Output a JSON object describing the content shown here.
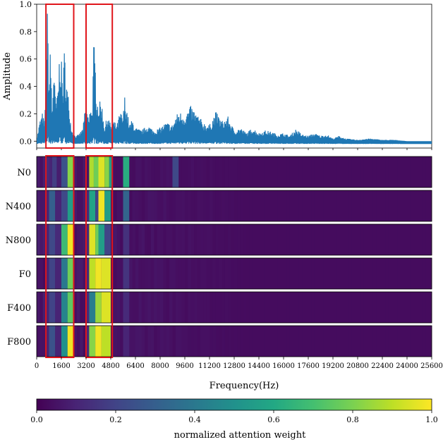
{
  "chart_data": [
    {
      "type": "line",
      "ylabel": "Amplitude",
      "xlim": [
        0,
        25600
      ],
      "ylim": [
        -0.05,
        1.0
      ],
      "yticks": [
        0.0,
        0.2,
        0.4,
        0.6,
        0.8,
        1.0
      ],
      "ytick_labels": [
        "0.0",
        "0.2",
        "0.4",
        "0.6",
        "0.8",
        "1.0"
      ],
      "line_color": "#1f77b4",
      "series": [
        {
          "x": [
            0,
            200,
            400,
            500,
            600,
            700,
            800,
            900,
            1000,
            1100,
            1200,
            1300,
            1400,
            1500,
            1600,
            1700,
            1800,
            1900,
            2000,
            2100,
            2200,
            2300,
            2400,
            2600,
            2800,
            3000,
            3200,
            3400,
            3500,
            3600,
            3700,
            3800,
            3900,
            4000,
            4200,
            4400,
            4600,
            4800,
            5000,
            5200,
            5400,
            5600,
            5700,
            5800,
            6000,
            6200,
            6400,
            6800,
            7200,
            7600,
            8000,
            8400,
            8800,
            9000,
            9200,
            9600,
            10000,
            10400,
            10800,
            11200,
            11600,
            12000,
            12400,
            12800,
            13200,
            13600,
            14000,
            14400,
            14800,
            15200,
            15600,
            16000,
            16400,
            16800,
            17200,
            17600,
            18000,
            18400,
            18800,
            19200,
            19600,
            20000,
            20800,
            21600,
            22400,
            23200,
            24000,
            24800,
            25600
          ],
          "y": [
            0.01,
            0.15,
            0.22,
            0.1,
            0.55,
            0.98,
            0.45,
            0.72,
            0.2,
            0.6,
            0.35,
            0.3,
            0.45,
            0.72,
            0.6,
            0.4,
            0.7,
            0.5,
            0.38,
            0.3,
            0.15,
            0.08,
            0.05,
            0.04,
            0.06,
            0.1,
            0.3,
            0.15,
            0.34,
            0.2,
            0.75,
            0.58,
            0.33,
            0.28,
            0.3,
            0.1,
            0.2,
            0.12,
            0.15,
            0.12,
            0.22,
            0.18,
            0.34,
            0.28,
            0.12,
            0.16,
            0.1,
            0.08,
            0.12,
            0.08,
            0.1,
            0.14,
            0.12,
            0.18,
            0.22,
            0.2,
            0.26,
            0.2,
            0.14,
            0.12,
            0.22,
            0.15,
            0.18,
            0.08,
            0.1,
            0.06,
            0.1,
            0.06,
            0.08,
            0.07,
            0.05,
            0.06,
            0.04,
            0.09,
            0.05,
            0.04,
            0.06,
            0.04,
            0.05,
            0.02,
            0.04,
            0.02,
            0.01,
            0.02,
            0.01,
            0.01,
            0.0,
            0.0,
            0.0
          ]
        }
      ],
      "highlight_boxes": [
        {
          "x": [
            600,
            2400
          ],
          "y": [
            -0.05,
            1.0
          ],
          "color": "#e0151b"
        },
        {
          "x": [
            3200,
            4900
          ],
          "y": [
            -0.05,
            1.0
          ],
          "color": "#e0151b"
        }
      ]
    },
    {
      "type": "heatmap",
      "rows": [
        "N0",
        "N400",
        "N800",
        "F0",
        "F400",
        "F800"
      ],
      "xlim": [
        0,
        25600
      ],
      "xlabel": "Frequency(Hz)",
      "xticks": [
        0,
        1600,
        3200,
        4800,
        6400,
        8000,
        9600,
        11200,
        12800,
        14400,
        16000,
        17600,
        19200,
        20800,
        22400,
        24000,
        25600
      ],
      "xtick_labels": [
        "0",
        "1600",
        "3200",
        "4800",
        "6400",
        "8000",
        "9600",
        "11200",
        "12800",
        "14400",
        "16000",
        "17600",
        "19200",
        "20800",
        "22400",
        "24000",
        "25600"
      ],
      "colormap": "viridis",
      "vmin": 0.0,
      "vmax": 1.0,
      "background_value": 0.03,
      "cells": [
        [
          {
            "x0": 600,
            "x1": 800,
            "v": 0.12
          },
          {
            "x0": 800,
            "x1": 1000,
            "v": 0.1
          },
          {
            "x0": 1000,
            "x1": 1300,
            "v": 0.18
          },
          {
            "x0": 1300,
            "x1": 1600,
            "v": 0.08
          },
          {
            "x0": 1600,
            "x1": 2000,
            "v": 0.25
          },
          {
            "x0": 2000,
            "x1": 2400,
            "v": 0.82
          },
          {
            "x0": 3400,
            "x1": 3700,
            "v": 0.88
          },
          {
            "x0": 3700,
            "x1": 4000,
            "v": 0.78
          },
          {
            "x0": 4000,
            "x1": 4400,
            "v": 0.95
          },
          {
            "x0": 4400,
            "x1": 4700,
            "v": 0.82
          },
          {
            "x0": 4700,
            "x1": 4900,
            "v": 0.55
          },
          {
            "x0": 5600,
            "x1": 6000,
            "v": 0.62
          },
          {
            "x0": 8800,
            "x1": 9200,
            "v": 0.22
          }
        ],
        [
          {
            "x0": 600,
            "x1": 800,
            "v": 0.1
          },
          {
            "x0": 800,
            "x1": 1200,
            "v": 0.3
          },
          {
            "x0": 1200,
            "x1": 1600,
            "v": 0.1
          },
          {
            "x0": 1600,
            "x1": 2000,
            "v": 0.22
          },
          {
            "x0": 2000,
            "x1": 2400,
            "v": 0.55
          },
          {
            "x0": 3200,
            "x1": 3400,
            "v": 0.12
          },
          {
            "x0": 3400,
            "x1": 3800,
            "v": 0.58
          },
          {
            "x0": 3800,
            "x1": 4000,
            "v": 0.2
          },
          {
            "x0": 4000,
            "x1": 4400,
            "v": 0.98
          },
          {
            "x0": 4400,
            "x1": 4800,
            "v": 0.55
          },
          {
            "x0": 5600,
            "x1": 6000,
            "v": 0.32
          }
        ],
        [
          {
            "x0": 600,
            "x1": 800,
            "v": 0.1
          },
          {
            "x0": 800,
            "x1": 1200,
            "v": 0.22
          },
          {
            "x0": 1200,
            "x1": 1600,
            "v": 0.12
          },
          {
            "x0": 1600,
            "x1": 2000,
            "v": 0.68
          },
          {
            "x0": 2000,
            "x1": 2400,
            "v": 0.98
          },
          {
            "x0": 3200,
            "x1": 3400,
            "v": 0.12
          },
          {
            "x0": 3400,
            "x1": 3800,
            "v": 0.95
          },
          {
            "x0": 3800,
            "x1": 4000,
            "v": 0.78
          },
          {
            "x0": 4000,
            "x1": 4400,
            "v": 0.55
          },
          {
            "x0": 4400,
            "x1": 4800,
            "v": 0.2
          },
          {
            "x0": 5600,
            "x1": 6000,
            "v": 0.14
          }
        ],
        [
          {
            "x0": 600,
            "x1": 800,
            "v": 0.1
          },
          {
            "x0": 800,
            "x1": 1200,
            "v": 0.2
          },
          {
            "x0": 1200,
            "x1": 1600,
            "v": 0.1
          },
          {
            "x0": 1600,
            "x1": 2000,
            "v": 0.4
          },
          {
            "x0": 2000,
            "x1": 2400,
            "v": 0.78
          },
          {
            "x0": 3200,
            "x1": 3400,
            "v": 0.12
          },
          {
            "x0": 3400,
            "x1": 3800,
            "v": 0.9
          },
          {
            "x0": 3800,
            "x1": 4200,
            "v": 0.98
          },
          {
            "x0": 4200,
            "x1": 4800,
            "v": 0.95
          },
          {
            "x0": 5600,
            "x1": 6000,
            "v": 0.15
          }
        ],
        [
          {
            "x0": 600,
            "x1": 800,
            "v": 0.1
          },
          {
            "x0": 800,
            "x1": 1200,
            "v": 0.2
          },
          {
            "x0": 1200,
            "x1": 1600,
            "v": 0.1
          },
          {
            "x0": 1600,
            "x1": 2000,
            "v": 0.45
          },
          {
            "x0": 2000,
            "x1": 2400,
            "v": 0.75
          },
          {
            "x0": 3200,
            "x1": 3400,
            "v": 0.12
          },
          {
            "x0": 3400,
            "x1": 3800,
            "v": 0.42
          },
          {
            "x0": 3800,
            "x1": 4200,
            "v": 0.85
          },
          {
            "x0": 4200,
            "x1": 4800,
            "v": 0.95
          },
          {
            "x0": 5600,
            "x1": 6000,
            "v": 0.12
          }
        ],
        [
          {
            "x0": 600,
            "x1": 800,
            "v": 0.1
          },
          {
            "x0": 800,
            "x1": 1200,
            "v": 0.25
          },
          {
            "x0": 1200,
            "x1": 1600,
            "v": 0.1
          },
          {
            "x0": 1600,
            "x1": 2000,
            "v": 0.5
          },
          {
            "x0": 2000,
            "x1": 2400,
            "v": 0.98
          },
          {
            "x0": 3200,
            "x1": 3400,
            "v": 0.12
          },
          {
            "x0": 3400,
            "x1": 3800,
            "v": 0.82
          },
          {
            "x0": 3800,
            "x1": 4200,
            "v": 0.98
          },
          {
            "x0": 4200,
            "x1": 4800,
            "v": 0.9
          },
          {
            "x0": 5600,
            "x1": 6000,
            "v": 0.1
          }
        ]
      ],
      "highlight_boxes": [
        {
          "x": [
            600,
            2400
          ],
          "color": "#e0151b"
        },
        {
          "x": [
            3200,
            4900
          ],
          "color": "#e0151b"
        }
      ]
    },
    {
      "type": "colorbar",
      "colormap": "viridis",
      "ticks": [
        0.0,
        0.2,
        0.4,
        0.6,
        0.8,
        1.0
      ],
      "tick_labels": [
        "0.0",
        "0.2",
        "0.4",
        "0.6",
        "0.8",
        "1.0"
      ],
      "label": "normalized attention weight"
    }
  ]
}
